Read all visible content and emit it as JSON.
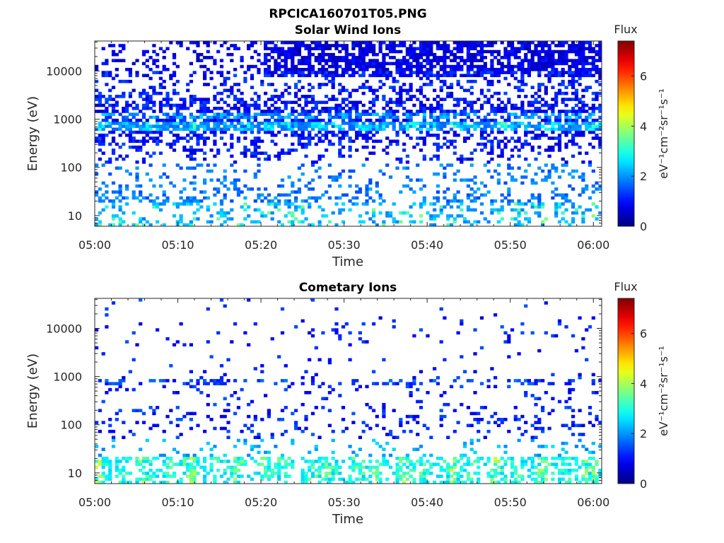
{
  "title": "RPCICA160701T05.PNG",
  "chart_data": [
    {
      "type": "heatmap",
      "title": "Solar Wind Ions",
      "xlabel": "Time",
      "ylabel": "Energy (eV)",
      "x_range": [
        "05:00",
        "06:01"
      ],
      "x_ticks": [
        "05:00",
        "05:10",
        "05:20",
        "05:30",
        "05:40",
        "05:50",
        "06:00"
      ],
      "y_scale": "log",
      "ylim": [
        6,
        42000
      ],
      "y_ticks": [
        "10",
        "100",
        "1000",
        "10000"
      ],
      "colorbar": {
        "label": "Flux",
        "unit": "eV⁻¹cm⁻²sr⁻¹s⁻¹",
        "colormap": "jet",
        "range": [
          0,
          7.4
        ],
        "ticks": [
          "0",
          "2",
          "4",
          "6"
        ]
      },
      "features": [
        {
          "energy_ev": 700,
          "flux": 3.4
        },
        {
          "energy_ev": 1200,
          "flux": 2.3
        },
        {
          "energy_ev": 20,
          "flux": 2.2
        },
        {
          "energy_ev": 8,
          "flux": 2.3
        },
        {
          "energy_ev": 20000,
          "flux": 0.7
        }
      ]
    },
    {
      "type": "heatmap",
      "title": "Cometary Ions",
      "xlabel": "Time",
      "ylabel": "Energy (eV)",
      "x_range": [
        "05:00",
        "06:01"
      ],
      "x_ticks": [
        "05:00",
        "05:10",
        "05:20",
        "05:30",
        "05:40",
        "05:50",
        "06:00"
      ],
      "y_scale": "log",
      "ylim": [
        6,
        42000
      ],
      "y_ticks": [
        "10",
        "100",
        "1000",
        "10000"
      ],
      "colorbar": {
        "label": "Flux",
        "unit": "eV⁻¹cm⁻²sr⁻¹s⁻¹",
        "colormap": "jet",
        "range": [
          0,
          7.4
        ],
        "ticks": [
          "0",
          "2",
          "4",
          "6"
        ]
      },
      "features": [
        {
          "energy_ev": 10,
          "flux": 3.8
        },
        {
          "energy_ev": 750,
          "flux": 1.2
        },
        {
          "energy_ev": 100,
          "flux": 1.3
        },
        {
          "energy_ev": 10000,
          "flux": 0.6
        }
      ]
    }
  ]
}
